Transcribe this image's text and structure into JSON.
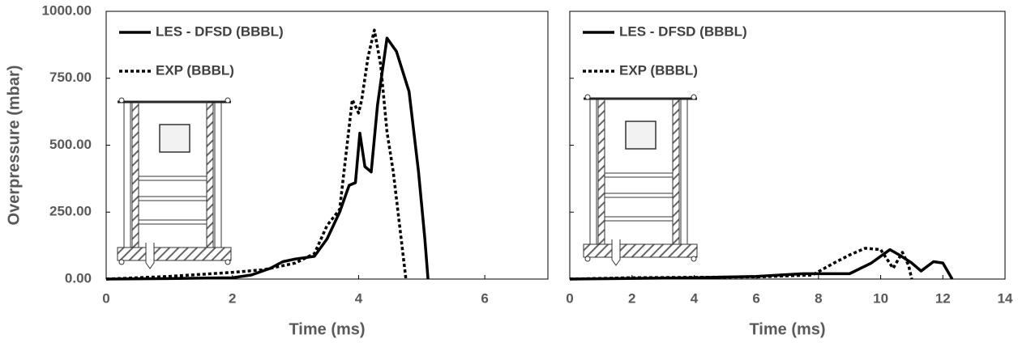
{
  "chart_data": [
    {
      "type": "line",
      "xlabel": "Time (ms)",
      "ylabel": "Overpressure (mbar)",
      "xlim": [
        0,
        7
      ],
      "xticks": [
        0,
        2,
        4,
        6
      ],
      "ylim": [
        0,
        1000
      ],
      "yticks": [
        {
          "value": 0,
          "label": "0.00"
        },
        {
          "value": 250,
          "label": "250.00"
        },
        {
          "value": 500,
          "label": "500.00"
        },
        {
          "value": 750,
          "label": "750.00"
        },
        {
          "value": 1000,
          "label": "1000.00"
        }
      ],
      "series": [
        {
          "name": "LES - DFSD (BBBL)",
          "color": "#000000",
          "dash": "solid",
          "x": [
            0,
            1,
            2,
            2.3,
            2.6,
            2.8,
            3.0,
            3.3,
            3.5,
            3.7,
            3.85,
            3.95,
            4.02,
            4.1,
            4.2,
            4.3,
            4.45,
            4.6,
            4.8,
            4.95,
            5.05,
            5.1
          ],
          "values": [
            0,
            2,
            5,
            15,
            40,
            65,
            75,
            85,
            150,
            250,
            350,
            360,
            545,
            420,
            400,
            650,
            900,
            850,
            700,
            400,
            150,
            0
          ]
        },
        {
          "name": "EXP (BBBL)",
          "color": "#000000",
          "dash": "dotted",
          "x": [
            0,
            1,
            2,
            2.5,
            3.0,
            3.3,
            3.5,
            3.7,
            3.9,
            4.0,
            4.05,
            4.15,
            4.25,
            4.35,
            4.45,
            4.55,
            4.65,
            4.75
          ],
          "values": [
            0,
            10,
            25,
            35,
            60,
            95,
            200,
            260,
            670,
            620,
            670,
            830,
            930,
            800,
            550,
            400,
            200,
            0
          ]
        }
      ]
    },
    {
      "type": "line",
      "xlabel": "Time (ms)",
      "xlim": [
        0,
        14
      ],
      "xticks": [
        0,
        2,
        4,
        6,
        8,
        10,
        12,
        14
      ],
      "ylim": [
        0,
        1000
      ],
      "yticks": [
        0,
        250,
        500,
        750,
        1000
      ],
      "series": [
        {
          "name": "LES - DFSD (BBBL)",
          "color": "#000000",
          "dash": "solid",
          "x": [
            0,
            4,
            6,
            7.5,
            8,
            9,
            9.7,
            10.3,
            10.6,
            11,
            11.3,
            11.7,
            12,
            12.3
          ],
          "values": [
            0,
            5,
            10,
            20,
            20,
            20,
            60,
            110,
            90,
            60,
            30,
            65,
            60,
            0
          ]
        },
        {
          "name": "EXP (BBBL)",
          "color": "#000000",
          "dash": "dotted",
          "x": [
            0,
            2,
            6,
            7.8,
            8.5,
            9,
            9.5,
            10,
            10.4,
            10.7,
            10.9,
            11.0
          ],
          "values": [
            0,
            5,
            8,
            15,
            60,
            90,
            115,
            110,
            40,
            100,
            50,
            0
          ]
        }
      ]
    }
  ]
}
